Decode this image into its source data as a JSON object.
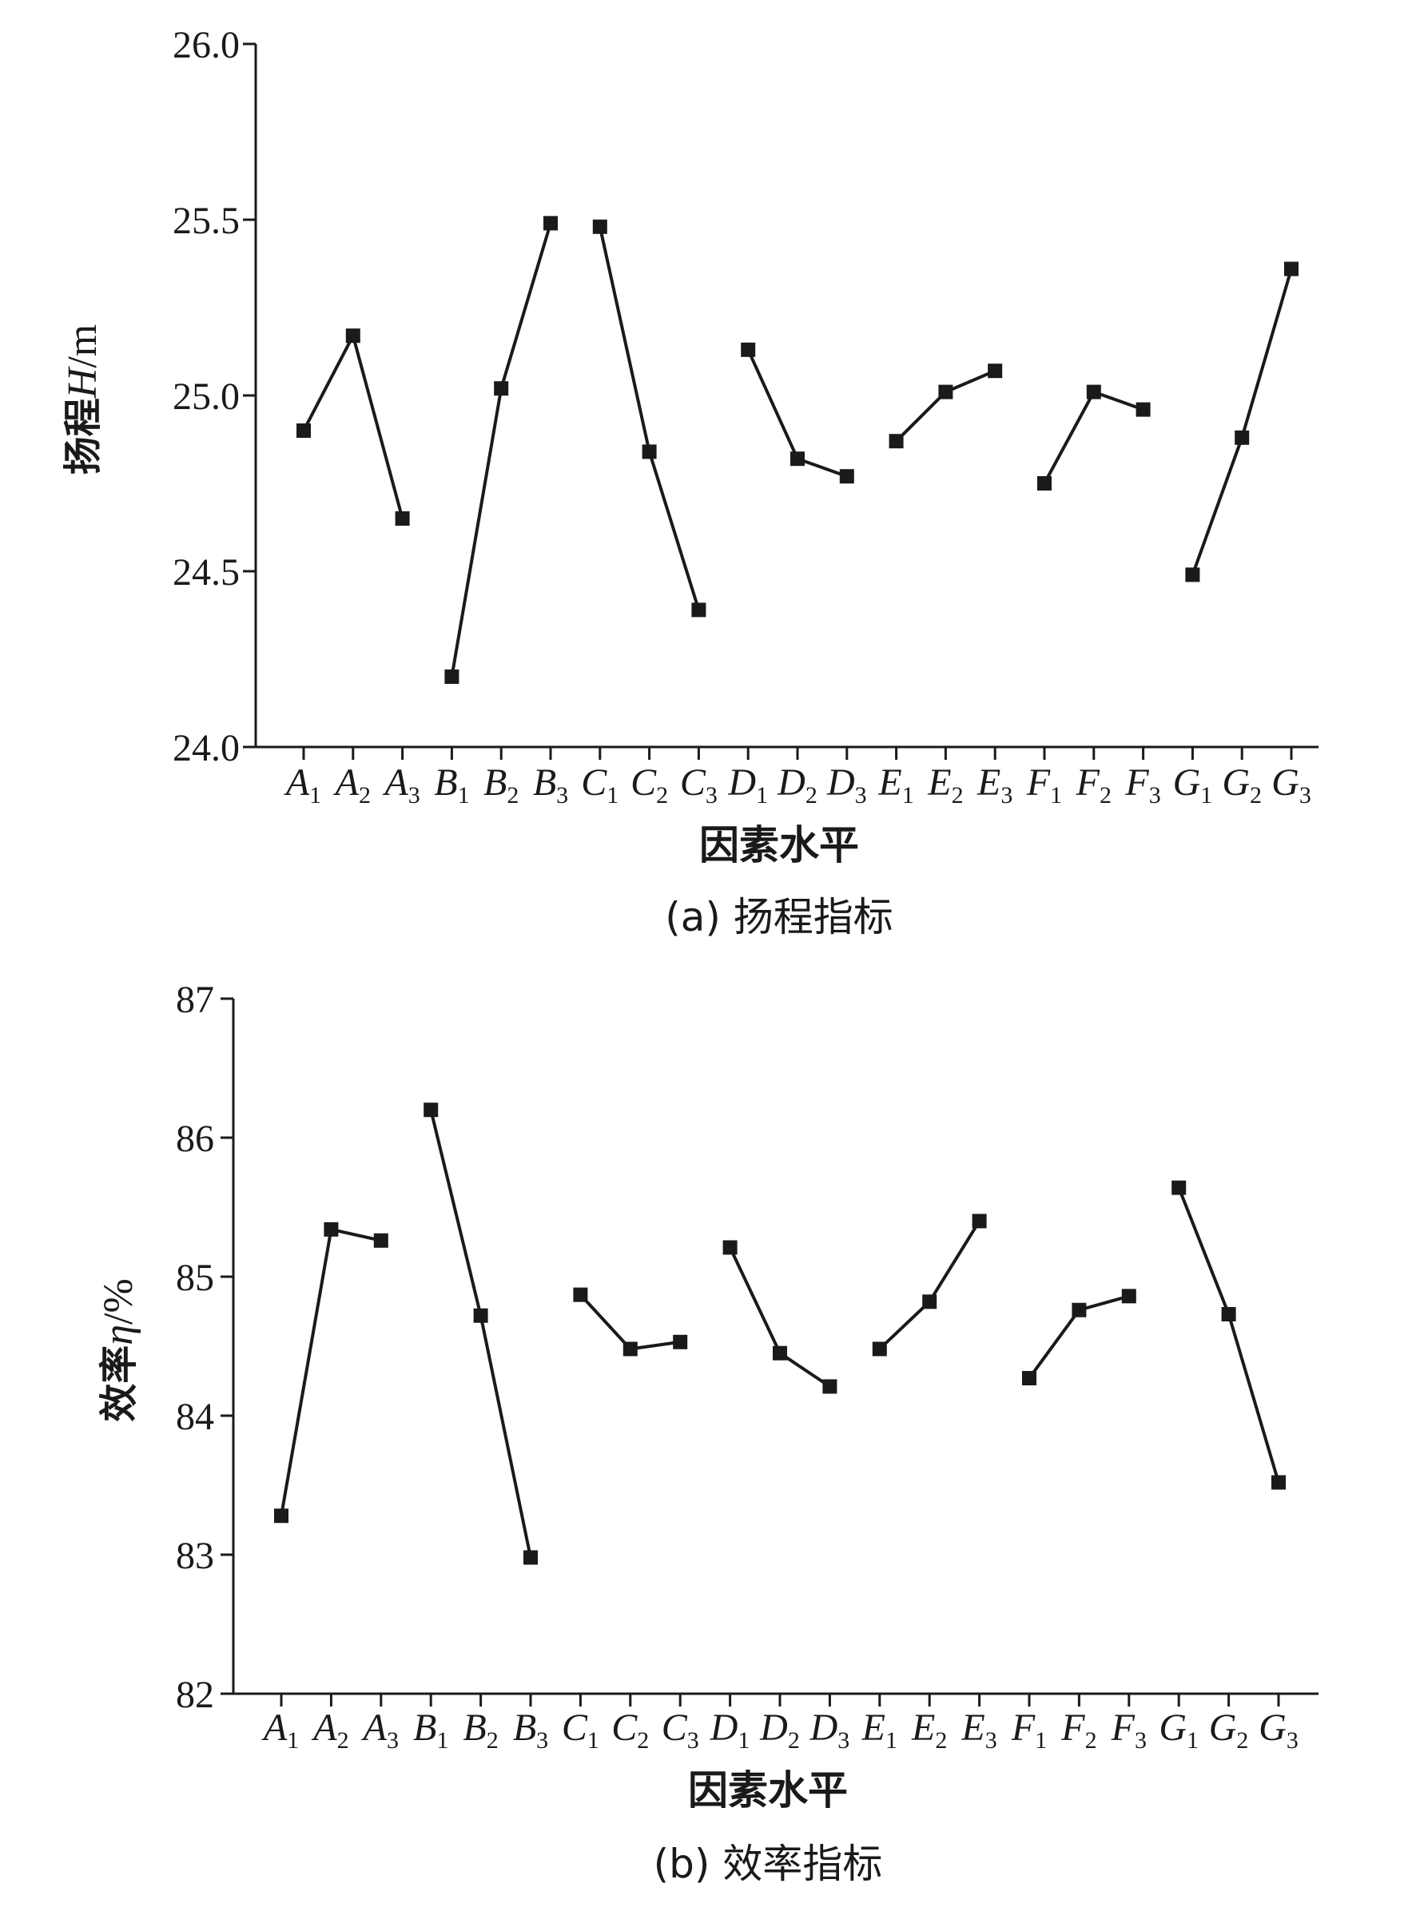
{
  "figure": {
    "background": "#ffffff",
    "ink": "#1a1a1a"
  },
  "chart_data": [
    {
      "id": "a",
      "type": "line",
      "caption": "(a) 扬程指标",
      "ylabel": "扬程H/m",
      "ylabel_parts": {
        "prefix": "扬程",
        "symbol": "H",
        "suffix": "/m"
      },
      "xlabel": "因素水平",
      "ylim": [
        24.0,
        26.0
      ],
      "yticks": [
        "24.0",
        "24.5",
        "25.0",
        "25.5",
        "26.0"
      ],
      "ytick_values": [
        24.0,
        24.5,
        25.0,
        25.5,
        26.0
      ],
      "categories": [
        {
          "letter": "A",
          "sub": "1"
        },
        {
          "letter": "A",
          "sub": "2"
        },
        {
          "letter": "A",
          "sub": "3"
        },
        {
          "letter": "B",
          "sub": "1"
        },
        {
          "letter": "B",
          "sub": "2"
        },
        {
          "letter": "B",
          "sub": "3"
        },
        {
          "letter": "C",
          "sub": "1"
        },
        {
          "letter": "C",
          "sub": "2"
        },
        {
          "letter": "C",
          "sub": "3"
        },
        {
          "letter": "D",
          "sub": "1"
        },
        {
          "letter": "D",
          "sub": "2"
        },
        {
          "letter": "D",
          "sub": "3"
        },
        {
          "letter": "E",
          "sub": "1"
        },
        {
          "letter": "E",
          "sub": "2"
        },
        {
          "letter": "E",
          "sub": "3"
        },
        {
          "letter": "F",
          "sub": "1"
        },
        {
          "letter": "F",
          "sub": "2"
        },
        {
          "letter": "F",
          "sub": "3"
        },
        {
          "letter": "G",
          "sub": "1"
        },
        {
          "letter": "G",
          "sub": "2"
        },
        {
          "letter": "G",
          "sub": "3"
        }
      ],
      "groups": [
        {
          "factor": "A",
          "values": [
            24.9,
            25.17,
            24.65
          ]
        },
        {
          "factor": "B",
          "values": [
            24.2,
            25.02,
            25.49
          ]
        },
        {
          "factor": "C",
          "values": [
            25.48,
            24.84,
            24.39
          ]
        },
        {
          "factor": "D",
          "values": [
            25.13,
            24.82,
            24.77
          ]
        },
        {
          "factor": "E",
          "values": [
            24.87,
            25.01,
            25.07
          ]
        },
        {
          "factor": "F",
          "values": [
            24.75,
            25.01,
            24.96
          ]
        },
        {
          "factor": "G",
          "values": [
            24.49,
            24.88,
            25.36
          ]
        }
      ],
      "grid": false,
      "marker": "square"
    },
    {
      "id": "b",
      "type": "line",
      "caption": "(b) 效率指标",
      "ylabel": "效率η/%",
      "ylabel_parts": {
        "prefix": "效率",
        "symbol": "η",
        "suffix": "/%"
      },
      "xlabel": "因素水平",
      "ylim": [
        82,
        87
      ],
      "yticks": [
        "82",
        "83",
        "84",
        "85",
        "86",
        "87"
      ],
      "ytick_values": [
        82,
        83,
        84,
        85,
        86,
        87
      ],
      "categories": [
        {
          "letter": "A",
          "sub": "1"
        },
        {
          "letter": "A",
          "sub": "2"
        },
        {
          "letter": "A",
          "sub": "3"
        },
        {
          "letter": "B",
          "sub": "1"
        },
        {
          "letter": "B",
          "sub": "2"
        },
        {
          "letter": "B",
          "sub": "3"
        },
        {
          "letter": "C",
          "sub": "1"
        },
        {
          "letter": "C",
          "sub": "2"
        },
        {
          "letter": "C",
          "sub": "3"
        },
        {
          "letter": "D",
          "sub": "1"
        },
        {
          "letter": "D",
          "sub": "2"
        },
        {
          "letter": "D",
          "sub": "3"
        },
        {
          "letter": "E",
          "sub": "1"
        },
        {
          "letter": "E",
          "sub": "2"
        },
        {
          "letter": "E",
          "sub": "3"
        },
        {
          "letter": "F",
          "sub": "1"
        },
        {
          "letter": "F",
          "sub": "2"
        },
        {
          "letter": "F",
          "sub": "3"
        },
        {
          "letter": "G",
          "sub": "1"
        },
        {
          "letter": "G",
          "sub": "2"
        },
        {
          "letter": "G",
          "sub": "3"
        }
      ],
      "groups": [
        {
          "factor": "A",
          "values": [
            83.28,
            85.34,
            85.26
          ]
        },
        {
          "factor": "B",
          "values": [
            86.2,
            84.72,
            82.98
          ]
        },
        {
          "factor": "C",
          "values": [
            84.87,
            84.48,
            84.53
          ]
        },
        {
          "factor": "D",
          "values": [
            85.21,
            84.45,
            84.21
          ]
        },
        {
          "factor": "E",
          "values": [
            84.48,
            84.82,
            85.4
          ]
        },
        {
          "factor": "F",
          "values": [
            84.27,
            84.76,
            84.86
          ]
        },
        {
          "factor": "G",
          "values": [
            85.64,
            84.73,
            83.52
          ]
        }
      ],
      "grid": false,
      "marker": "square"
    }
  ]
}
